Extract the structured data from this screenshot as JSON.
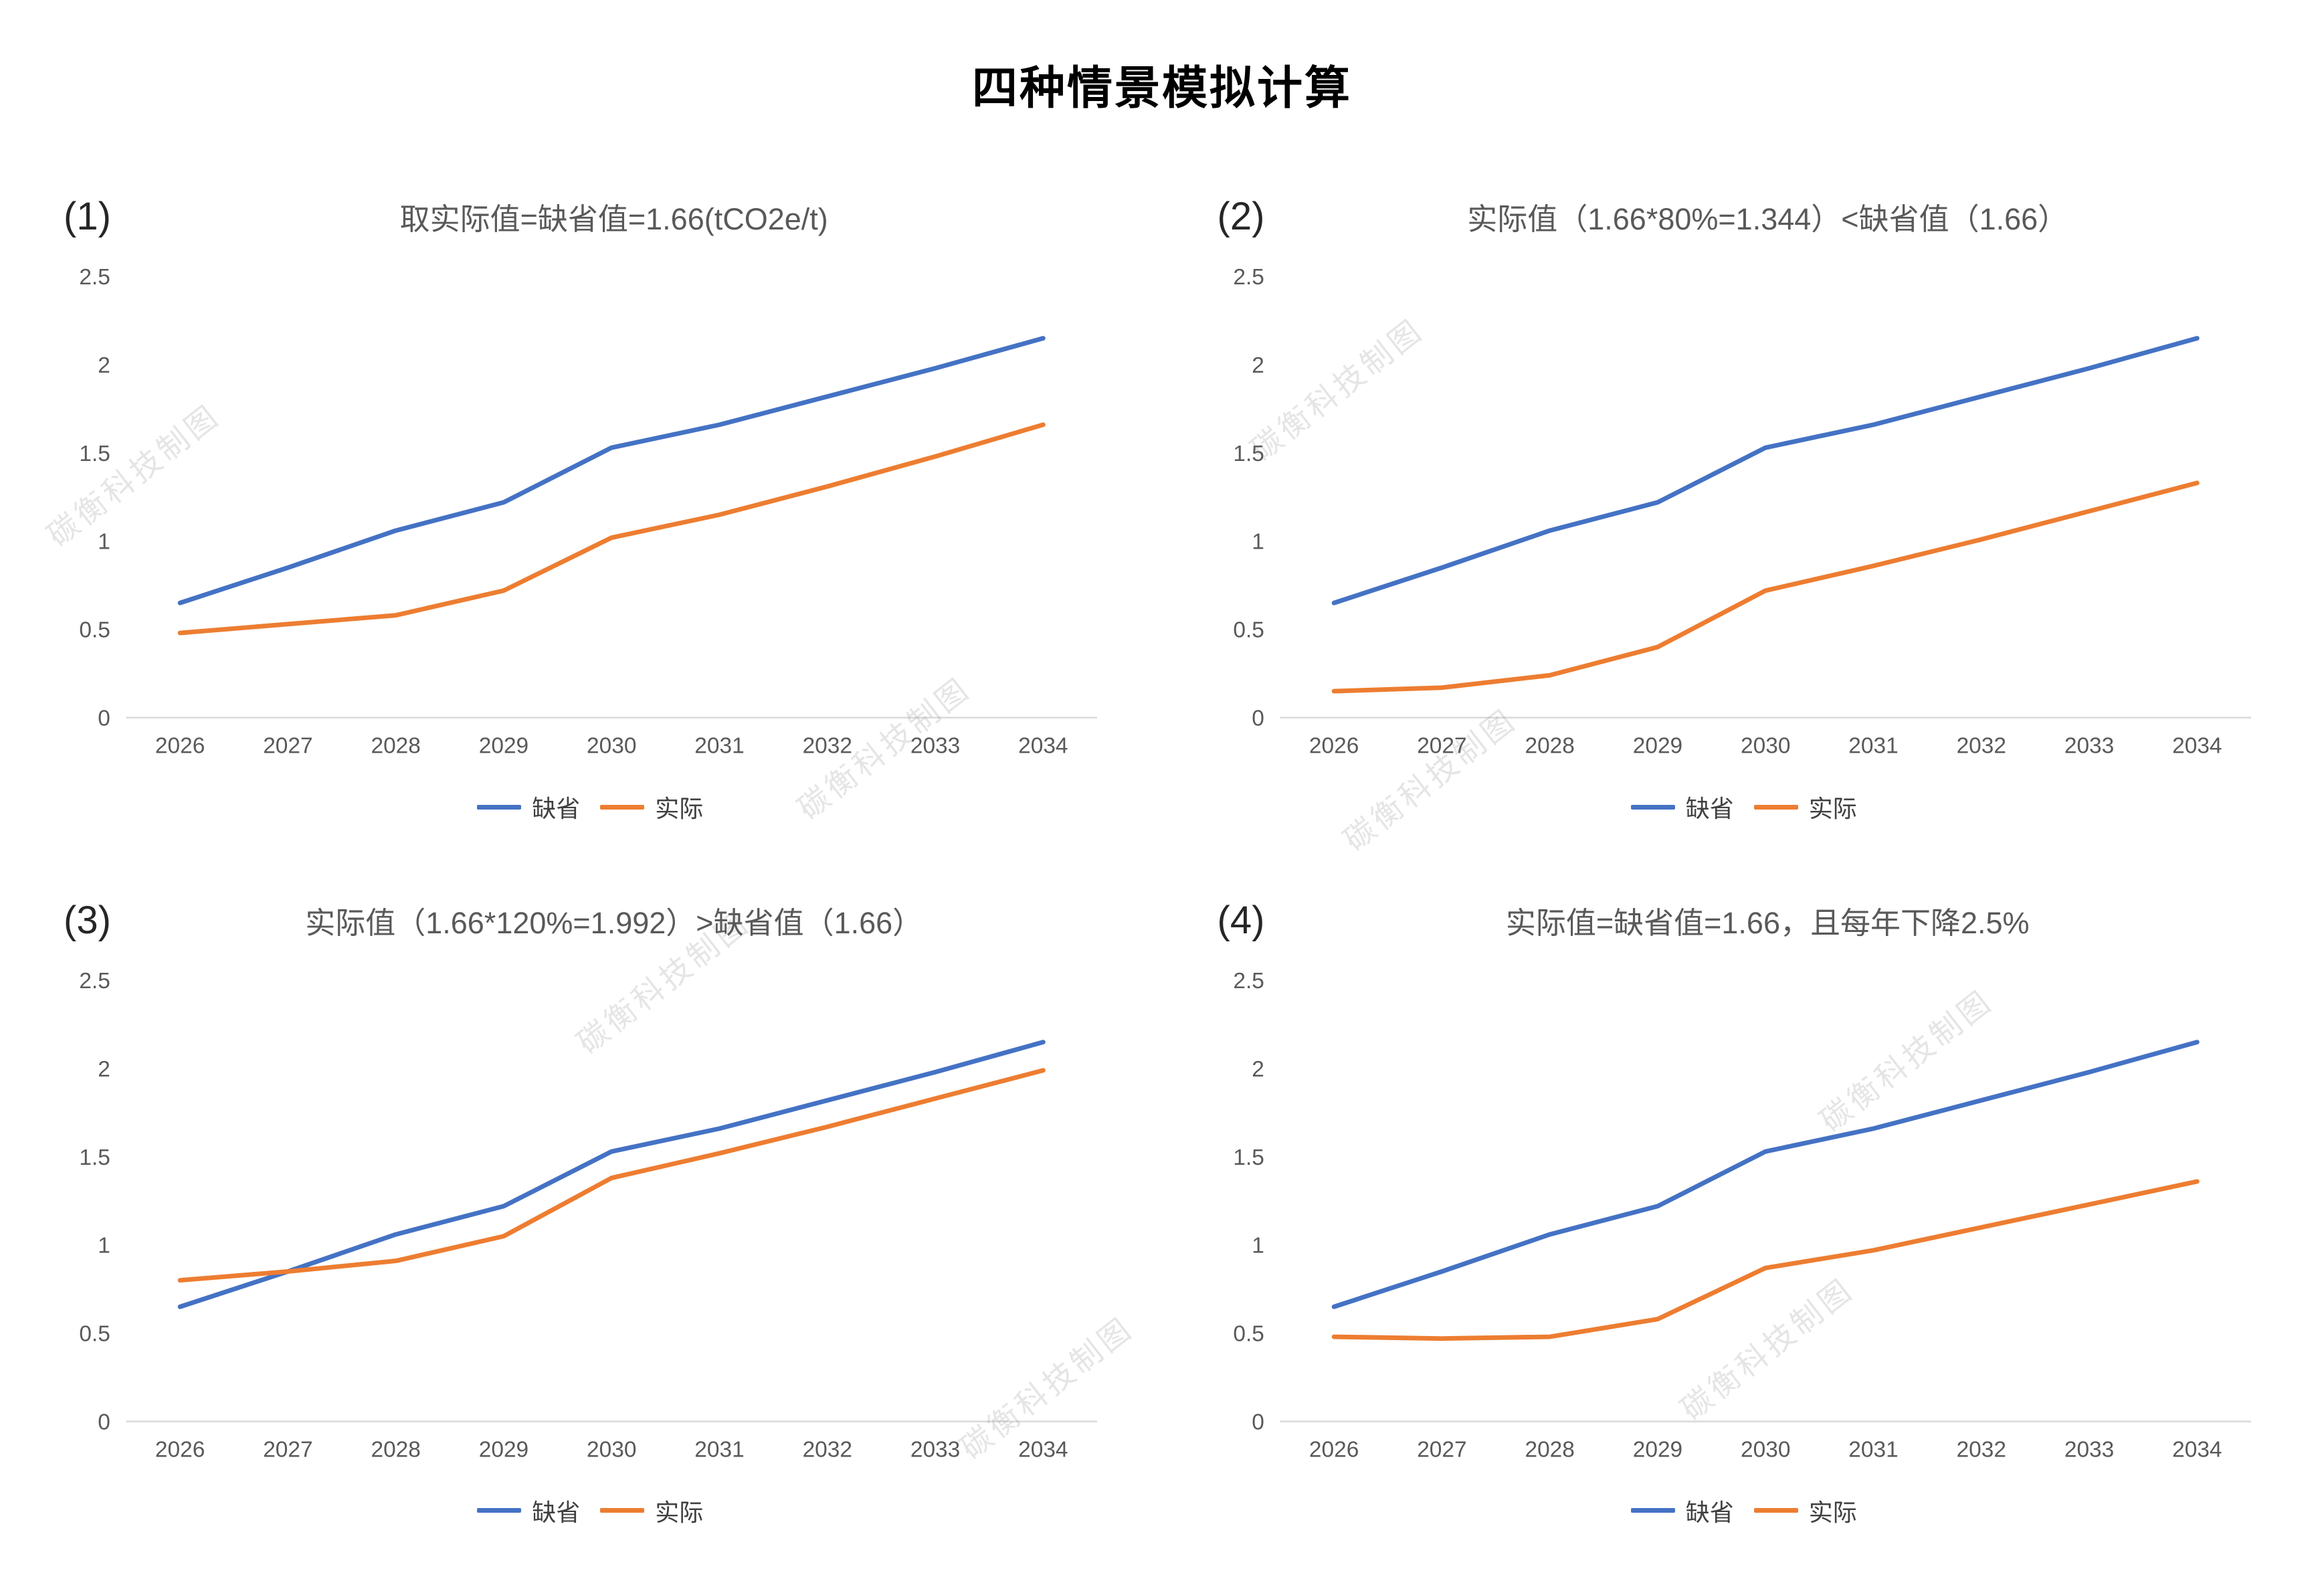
{
  "page_title": "四种情景模拟计算",
  "watermark": {
    "text": "碳衡科技制图"
  },
  "colors": {
    "default_series": "#4472C4",
    "actual_series": "#ED7D31",
    "axis_text": "#595959",
    "title_text": "#595959",
    "axis_line": "#d9d9d9"
  },
  "chart_data": [
    {
      "type": "line",
      "index_label": "(1)",
      "title": "取实际值=缺省值=1.66(tCO2e/t)",
      "categories": [
        "2026",
        "2027",
        "2028",
        "2029",
        "2030",
        "2031",
        "2032",
        "2033",
        "2034"
      ],
      "ylim": [
        0,
        2.5
      ],
      "yticks": [
        0,
        0.5,
        1,
        1.5,
        2,
        2.5
      ],
      "ytick_labels": [
        "0",
        "0.5",
        "1",
        "1.5",
        "2",
        "2.5"
      ],
      "grid": false,
      "legend_position": "bottom",
      "series": [
        {
          "name": "缺省",
          "color": "#4472C4",
          "values": [
            0.65,
            0.85,
            1.06,
            1.22,
            1.53,
            1.66,
            1.82,
            1.98,
            2.15
          ]
        },
        {
          "name": "实际",
          "color": "#ED7D31",
          "values": [
            0.48,
            0.53,
            0.58,
            0.72,
            1.02,
            1.15,
            1.31,
            1.48,
            1.66
          ]
        }
      ]
    },
    {
      "type": "line",
      "index_label": "(2)",
      "title": "实际值（1.66*80%=1.344）<缺省值（1.66）",
      "categories": [
        "2026",
        "2027",
        "2028",
        "2029",
        "2030",
        "2031",
        "2032",
        "2033",
        "2034"
      ],
      "ylim": [
        0,
        2.5
      ],
      "yticks": [
        0,
        0.5,
        1,
        1.5,
        2,
        2.5
      ],
      "ytick_labels": [
        "0",
        "0.5",
        "1",
        "1.5",
        "2",
        "2.5"
      ],
      "grid": false,
      "legend_position": "bottom",
      "series": [
        {
          "name": "缺省",
          "color": "#4472C4",
          "values": [
            0.65,
            0.85,
            1.06,
            1.22,
            1.53,
            1.66,
            1.82,
            1.98,
            2.15
          ]
        },
        {
          "name": "实际",
          "color": "#ED7D31",
          "values": [
            0.15,
            0.17,
            0.24,
            0.4,
            0.72,
            0.86,
            1.01,
            1.17,
            1.33
          ]
        }
      ]
    },
    {
      "type": "line",
      "index_label": "(3)",
      "title": "实际值（1.66*120%=1.992）>缺省值（1.66）",
      "categories": [
        "2026",
        "2027",
        "2028",
        "2029",
        "2030",
        "2031",
        "2032",
        "2033",
        "2034"
      ],
      "ylim": [
        0,
        2.5
      ],
      "yticks": [
        0,
        0.5,
        1,
        1.5,
        2,
        2.5
      ],
      "ytick_labels": [
        "0",
        "0.5",
        "1",
        "1.5",
        "2",
        "2.5"
      ],
      "grid": false,
      "legend_position": "bottom",
      "series": [
        {
          "name": "缺省",
          "color": "#4472C4",
          "values": [
            0.65,
            0.85,
            1.06,
            1.22,
            1.53,
            1.66,
            1.82,
            1.98,
            2.15
          ]
        },
        {
          "name": "实际",
          "color": "#ED7D31",
          "values": [
            0.8,
            0.85,
            0.91,
            1.05,
            1.38,
            1.52,
            1.67,
            1.83,
            1.99
          ]
        }
      ]
    },
    {
      "type": "line",
      "index_label": "(4)",
      "title": "实际值=缺省值=1.66，且每年下降2.5%",
      "categories": [
        "2026",
        "2027",
        "2028",
        "2029",
        "2030",
        "2031",
        "2032",
        "2033",
        "2034"
      ],
      "ylim": [
        0,
        2.5
      ],
      "yticks": [
        0,
        0.5,
        1,
        1.5,
        2,
        2.5
      ],
      "ytick_labels": [
        "0",
        "0.5",
        "1",
        "1.5",
        "2",
        "2.5"
      ],
      "grid": false,
      "legend_position": "bottom",
      "series": [
        {
          "name": "缺省",
          "color": "#4472C4",
          "values": [
            0.65,
            0.85,
            1.06,
            1.22,
            1.53,
            1.66,
            1.82,
            1.98,
            2.15
          ]
        },
        {
          "name": "实际",
          "color": "#ED7D31",
          "values": [
            0.48,
            0.47,
            0.48,
            0.58,
            0.87,
            0.97,
            1.1,
            1.23,
            1.36
          ]
        }
      ]
    }
  ]
}
